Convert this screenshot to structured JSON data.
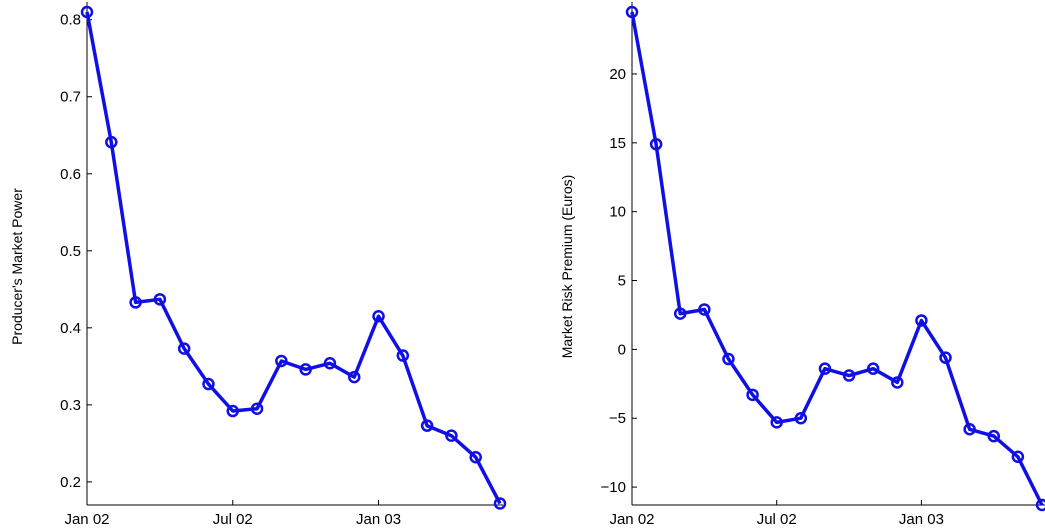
{
  "colors": {
    "series": "#1010e6",
    "axis": "#000000",
    "background": "#ffffff"
  },
  "chart_data": [
    {
      "type": "line",
      "ylabel": "Producer's Market Power",
      "xlabel": "",
      "x": [
        "2002-01",
        "2002-02",
        "2002-03",
        "2002-04",
        "2002-05",
        "2002-06",
        "2002-07",
        "2002-08",
        "2002-09",
        "2002-10",
        "2002-11",
        "2002-12",
        "2003-01",
        "2003-02",
        "2003-03",
        "2003-04",
        "2003-05",
        "2003-06"
      ],
      "xlim": [
        "2002-01",
        "2003-06"
      ],
      "xticks": [
        {
          "x": "2002-01",
          "label": "Jan 02"
        },
        {
          "x": "2002-07",
          "label": "Jul 02"
        },
        {
          "x": "2003-01",
          "label": "Jan 03"
        }
      ],
      "ylim": [
        0.17,
        0.81
      ],
      "yticks": [
        {
          "y": 0.2,
          "label": "0.2"
        },
        {
          "y": 0.3,
          "label": "0.3"
        },
        {
          "y": 0.4,
          "label": "0.4"
        },
        {
          "y": 0.5,
          "label": "0.5"
        },
        {
          "y": 0.6,
          "label": "0.6"
        },
        {
          "y": 0.7,
          "label": "0.7"
        },
        {
          "y": 0.8,
          "label": "0.8"
        }
      ],
      "grid": false,
      "marker": "circle",
      "series": [
        {
          "values": [
            0.81,
            0.641,
            0.433,
            0.437,
            0.373,
            0.327,
            0.292,
            0.295,
            0.357,
            0.346,
            0.354,
            0.336,
            0.415,
            0.364,
            0.273,
            0.26,
            0.232,
            0.172
          ]
        }
      ]
    },
    {
      "type": "line",
      "ylabel": "Market Risk Premium (Euros)",
      "xlabel": "",
      "x": [
        "2002-01",
        "2002-02",
        "2002-03",
        "2002-04",
        "2002-05",
        "2002-06",
        "2002-07",
        "2002-08",
        "2002-09",
        "2002-10",
        "2002-11",
        "2002-12",
        "2003-01",
        "2003-02",
        "2003-03",
        "2003-04",
        "2003-05",
        "2003-06"
      ],
      "xlim": [
        "2002-01",
        "2003-06"
      ],
      "xticks": [
        {
          "x": "2002-01",
          "label": "Jan 02"
        },
        {
          "x": "2002-07",
          "label": "Jul 02"
        },
        {
          "x": "2003-01",
          "label": "Jan 03"
        }
      ],
      "ylim": [
        -11.3,
        24.5
      ],
      "yticks": [
        {
          "y": -10,
          "label": "−10"
        },
        {
          "y": -5,
          "label": "−5"
        },
        {
          "y": 0,
          "label": "0"
        },
        {
          "y": 5,
          "label": "5"
        },
        {
          "y": 10,
          "label": "10"
        },
        {
          "y": 15,
          "label": "15"
        },
        {
          "y": 20,
          "label": "20"
        }
      ],
      "grid": false,
      "marker": "circle",
      "series": [
        {
          "values": [
            24.5,
            14.9,
            2.6,
            2.9,
            -0.7,
            -3.3,
            -5.3,
            -5.0,
            -1.4,
            -1.9,
            -1.4,
            -2.4,
            2.1,
            -0.6,
            -5.8,
            -6.3,
            -7.8,
            -11.3
          ]
        }
      ]
    }
  ]
}
